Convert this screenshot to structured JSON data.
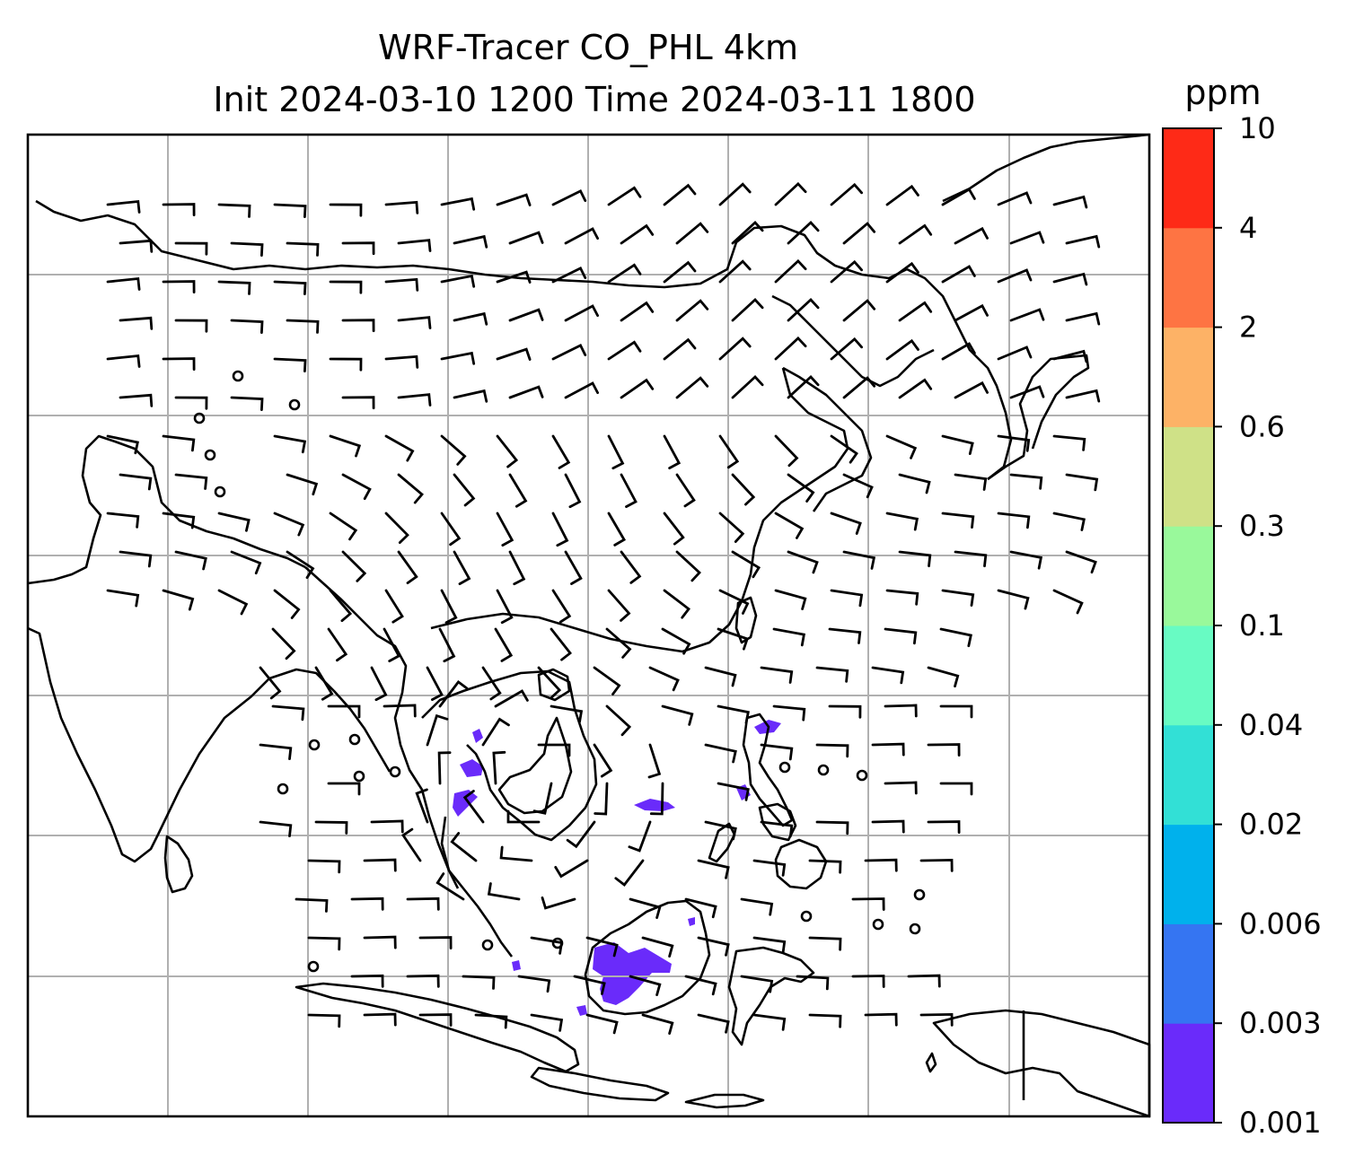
{
  "title": {
    "line1": "WRF-Tracer CO_PHL 4km",
    "line2": "Init 2024-03-10 1200 Time 2024-03-11 1800"
  },
  "colorbar": {
    "unit": "ppm",
    "levels": [
      "0.001",
      "0.003",
      "0.006",
      "0.02",
      "0.04",
      "0.1",
      "0.3",
      "0.6",
      "2",
      "4",
      "10"
    ],
    "colors": [
      "#6a2bfa",
      "#3575f2",
      "#00b1ec",
      "#32e0d6",
      "#68fbc3",
      "#99f99b",
      "#cfe187",
      "#fdb266",
      "#fe7443",
      "#fe2a17"
    ]
  },
  "map": {
    "region": "South and East Asia",
    "gridlines": true,
    "coastline_color": "#000000",
    "gridline_color": "#b0b0b0",
    "tracer_color": "#6a2bfa"
  }
}
